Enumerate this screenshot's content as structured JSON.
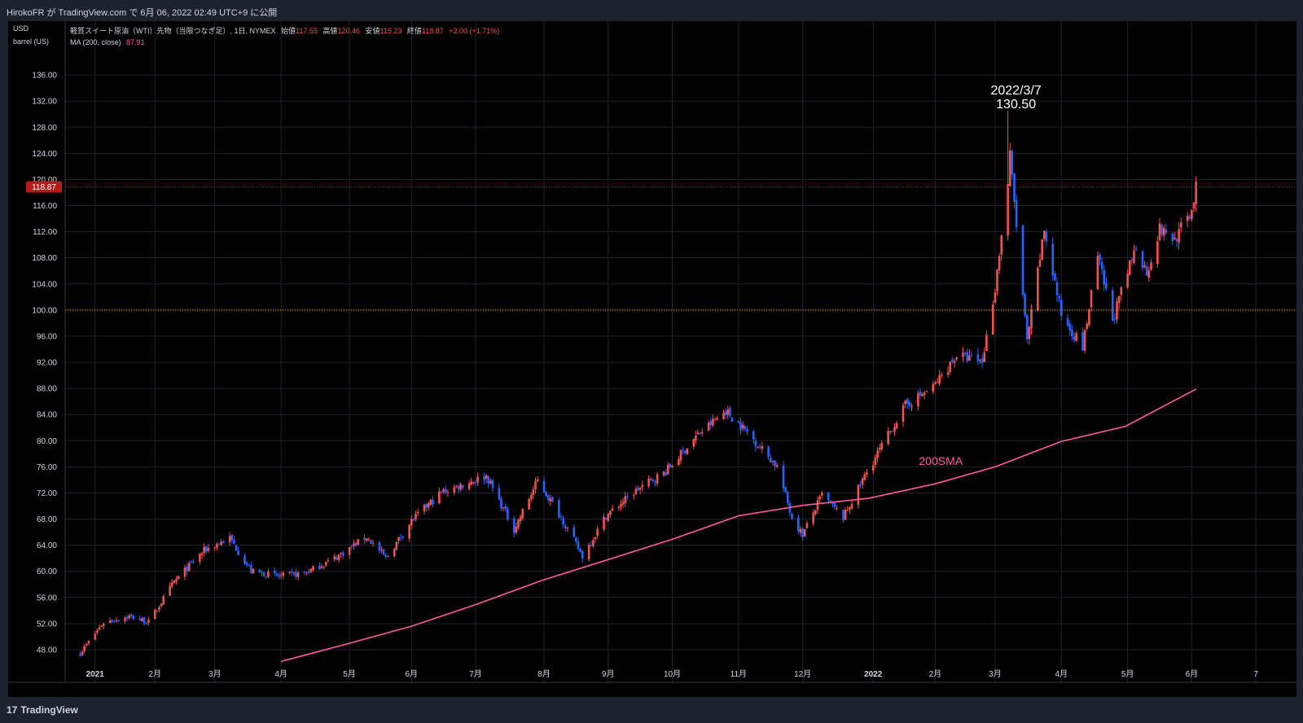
{
  "header": {
    "published": "HirokoFR が TradingView.com で 6月 06, 2022 02:49 UTC+9 に公開"
  },
  "legend": {
    "title": "軽質スイート原油（WTI）先物（当限つなぎ足）, 1日, NYMEX",
    "open_label": "始値",
    "open": "117.55",
    "high_label": "高値",
    "high": "120.46",
    "low_label": "安値",
    "low": "115.23",
    "close_label": "終値",
    "close": "118.87",
    "change": "+2.00 (+1.71%)",
    "ma_label": "MA (200, close)",
    "ma_value": "87.91"
  },
  "footer": {
    "brand": "TradingView",
    "brand_glyph": "17"
  },
  "colors": {
    "up": "#ef5350",
    "down": "#2962ff",
    "ma": "#ff5d9e",
    "price_line": "#b71c1c",
    "level_line": "#f7a600",
    "grid": "#1f222a",
    "axis_text": "#d1d4dc"
  },
  "chart_data": {
    "type": "candlestick",
    "unit_label": "USD",
    "unit_sub": "barrel (US)",
    "ylim": [
      46,
      140
    ],
    "y_ticks": [
      "48.00",
      "52.00",
      "56.00",
      "60.00",
      "64.00",
      "68.00",
      "72.00",
      "76.00",
      "80.00",
      "84.00",
      "88.00",
      "92.00",
      "96.00",
      "100.00",
      "104.00",
      "108.00",
      "112.00",
      "116.00",
      "120.00",
      "124.00",
      "128.00",
      "132.00",
      "136.00"
    ],
    "x_ticks": [
      {
        "label": "2021",
        "date": "2021-01-04"
      },
      {
        "label": "2月",
        "date": "2021-02-01"
      },
      {
        "label": "3月",
        "date": "2021-03-01"
      },
      {
        "label": "4月",
        "date": "2021-04-01"
      },
      {
        "label": "5月",
        "date": "2021-05-03"
      },
      {
        "label": "6月",
        "date": "2021-06-01"
      },
      {
        "label": "7月",
        "date": "2021-07-01"
      },
      {
        "label": "8月",
        "date": "2021-08-02"
      },
      {
        "label": "9月",
        "date": "2021-09-01"
      },
      {
        "label": "10月",
        "date": "2021-10-01"
      },
      {
        "label": "11月",
        "date": "2021-11-01"
      },
      {
        "label": "12月",
        "date": "2021-12-01"
      },
      {
        "label": "2022",
        "date": "2022-01-03"
      },
      {
        "label": "2月",
        "date": "2022-02-01"
      },
      {
        "label": "3月",
        "date": "2022-03-01"
      },
      {
        "label": "4月",
        "date": "2022-04-01"
      },
      {
        "label": "5月",
        "date": "2022-05-02"
      },
      {
        "label": "6月",
        "date": "2022-06-01"
      },
      {
        "label": "7",
        "date": "2022-07-01"
      }
    ],
    "current_price": "118.87",
    "reference_level": 100,
    "close_path": [
      [
        "2020-12-28",
        47.5
      ],
      [
        "2021-01-08",
        52.2
      ],
      [
        "2021-01-20",
        53.1
      ],
      [
        "2021-01-29",
        52.2
      ],
      [
        "2021-02-10",
        58.4
      ],
      [
        "2021-02-24",
        63.2
      ],
      [
        "2021-03-08",
        65.1
      ],
      [
        "2021-03-18",
        60.0
      ],
      [
        "2021-03-31",
        59.2
      ],
      [
        "2021-04-12",
        59.7
      ],
      [
        "2021-04-26",
        62.0
      ],
      [
        "2021-05-11",
        65.3
      ],
      [
        "2021-05-20",
        62.0
      ],
      [
        "2021-06-01",
        67.7
      ],
      [
        "2021-06-15",
        72.1
      ],
      [
        "2021-07-06",
        74.6
      ],
      [
        "2021-07-19",
        66.4
      ],
      [
        "2021-07-30",
        73.9
      ],
      [
        "2021-08-10",
        68.3
      ],
      [
        "2021-08-20",
        62.3
      ],
      [
        "2021-08-31",
        68.5
      ],
      [
        "2021-09-15",
        72.6
      ],
      [
        "2021-09-28",
        75.3
      ],
      [
        "2021-10-12",
        80.6
      ],
      [
        "2021-10-26",
        84.6
      ],
      [
        "2021-11-05",
        81.3
      ],
      [
        "2021-11-19",
        76.1
      ],
      [
        "2021-11-26",
        68.2
      ],
      [
        "2021-12-01",
        65.6
      ],
      [
        "2021-12-10",
        71.7
      ],
      [
        "2021-12-20",
        68.2
      ],
      [
        "2021-12-31",
        75.2
      ],
      [
        "2022-01-18",
        85.4
      ],
      [
        "2022-01-31",
        88.2
      ],
      [
        "2022-02-11",
        93.1
      ],
      [
        "2022-02-23",
        92.1
      ],
      [
        "2022-03-01",
        103.4
      ],
      [
        "2022-03-07",
        119.4
      ],
      [
        "2022-03-08",
        123.7
      ],
      [
        "2022-03-16",
        95.0
      ],
      [
        "2022-03-24",
        112.3
      ],
      [
        "2022-04-01",
        99.3
      ],
      [
        "2022-04-11",
        94.3
      ],
      [
        "2022-04-18",
        108.2
      ],
      [
        "2022-04-25",
        98.5
      ],
      [
        "2022-05-06",
        109.8
      ],
      [
        "2022-05-11",
        105.7
      ],
      [
        "2022-05-17",
        112.4
      ],
      [
        "2022-05-24",
        110.8
      ],
      [
        "2022-06-01",
        115.3
      ],
      [
        "2022-06-03",
        118.9
      ]
    ],
    "series": [
      {
        "name": "MA (200, close)",
        "points": [
          [
            "2021-04-01",
            46.2
          ],
          [
            "2021-05-01",
            48.8
          ],
          [
            "2021-06-01",
            51.6
          ],
          [
            "2021-07-01",
            54.9
          ],
          [
            "2021-08-01",
            58.6
          ],
          [
            "2021-09-01",
            61.8
          ],
          [
            "2021-10-01",
            64.9
          ],
          [
            "2021-11-01",
            68.5
          ],
          [
            "2021-12-01",
            70.1
          ],
          [
            "2022-01-01",
            71.2
          ],
          [
            "2022-02-01",
            73.4
          ],
          [
            "2022-03-01",
            76.0
          ],
          [
            "2022-04-01",
            79.9
          ],
          [
            "2022-05-01",
            82.2
          ],
          [
            "2022-06-03",
            87.9
          ]
        ]
      }
    ],
    "annotations": [
      {
        "text": "2022/3/7",
        "date": "2022-03-07",
        "value": 130.5,
        "role": "date"
      },
      {
        "text": "130.50",
        "date": "2022-03-07",
        "value": 130.5,
        "role": "value"
      },
      {
        "text": "200SMA",
        "date": "2022-02-01",
        "value": 73.4,
        "role": "ma-label"
      }
    ]
  }
}
